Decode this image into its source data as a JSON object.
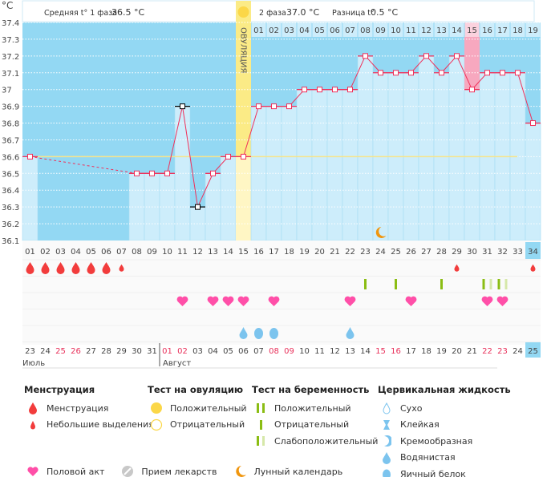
{
  "header": {
    "unit": "°C",
    "phase1_label": "Средняя t° 1 фаза",
    "phase1_value": "36.5 °C",
    "phase2_label": "2 фаза",
    "phase2_value": "37.0 °C",
    "diff_label": "Разница t°",
    "diff_value": "0.5 °C",
    "ovulation_label": "ОВУЛЯЦИЯ"
  },
  "chart_data": {
    "type": "line",
    "ylabel": "°C",
    "ylim": [
      36.1,
      37.4
    ],
    "yticks": [
      "36.1",
      "36.2",
      "36.3",
      "36.4",
      "36.5",
      "36.6",
      "36.7",
      "36.8",
      "36.9",
      "37",
      "37.1",
      "37.2",
      "37.3",
      "37.4"
    ],
    "cycle_days": [
      "01",
      "02",
      "03",
      "04",
      "05",
      "06",
      "07",
      "08",
      "09",
      "10",
      "11",
      "12",
      "13",
      "14",
      "15",
      "16",
      "17",
      "18",
      "19",
      "20",
      "21",
      "22",
      "23",
      "24",
      "25",
      "26",
      "27",
      "28",
      "29",
      "30",
      "31",
      "32",
      "33",
      "34"
    ],
    "temperatures": [
      36.6,
      null,
      null,
      null,
      null,
      null,
      null,
      36.5,
      36.5,
      36.5,
      36.9,
      36.3,
      36.5,
      36.6,
      36.6,
      36.9,
      36.9,
      36.9,
      37.0,
      37.0,
      37.0,
      37.0,
      37.2,
      37.1,
      37.1,
      37.1,
      37.2,
      37.1,
      37.2,
      37.0,
      37.1,
      37.1,
      37.1,
      36.8
    ],
    "excluded_days": [
      11,
      12
    ],
    "coverline": 36.6,
    "ovulation_day": 15,
    "post_ovulation_days": [
      "01",
      "02",
      "03",
      "04",
      "05",
      "06",
      "07",
      "08",
      "09",
      "10",
      "11",
      "12",
      "13",
      "14",
      "15",
      "16",
      "17",
      "18",
      "19"
    ],
    "highlighted_post_ovulation_day": 15,
    "current_day": 34,
    "dates": [
      "23",
      "24",
      "25",
      "26",
      "27",
      "28",
      "29",
      "30",
      "31",
      "01",
      "02",
      "03",
      "04",
      "05",
      "06",
      "07",
      "08",
      "09",
      "10",
      "11",
      "12",
      "13",
      "14",
      "15",
      "16",
      "17",
      "18",
      "19",
      "20",
      "21",
      "22",
      "23",
      "24",
      "25"
    ],
    "weekend_date_indexes": [
      3,
      4,
      10,
      11,
      17,
      18,
      24,
      25,
      31,
      32
    ],
    "months": [
      "Июль",
      "Август"
    ],
    "menstruation": {
      "1": "heavy",
      "2": "heavy",
      "3": "heavy",
      "4": "heavy",
      "5": "heavy",
      "6": "heavy",
      "7": "light",
      "29": "light",
      "34": "light"
    },
    "pregnancy_tests": {
      "23": "negative",
      "25": "negative",
      "28": "negative",
      "31": "weak",
      "32": "weak"
    },
    "intercourse_days": [
      11,
      13,
      14,
      15,
      17,
      22,
      26,
      31,
      32
    ],
    "cervical_fluid": {
      "15": "watery",
      "16": "eggwhite",
      "17": "eggwhite",
      "22": "watery"
    },
    "lunar_day": 24
  },
  "colors": {
    "bg_dark": "#93d8f3",
    "bg_light": "#cdedfb",
    "line": "#f0305a",
    "coverline": "#f7e48a",
    "ovulation": "#fbeb86",
    "highlight": "#f7a8bf",
    "weekend": "#e8305a",
    "menstruation": "#f23c3c",
    "test": "#8bbd14",
    "test_light": "#d6e8a9",
    "heart": "#ff4fa8",
    "fluid": "#7cc4ee",
    "moon": "#f0960e"
  },
  "legend": {
    "menstruation": {
      "title": "Менструация",
      "items": [
        "Менструация",
        "Небольшие выделения"
      ]
    },
    "ovulation_test": {
      "title": "Тест на овуляцию",
      "items": [
        "Положительный",
        "Отрицательный"
      ]
    },
    "pregnancy_test": {
      "title": "Тест на беременность",
      "items": [
        "Положительный",
        "Отрицательный",
        "Слабоположительный"
      ]
    },
    "cervical": {
      "title": "Цервикальная жидкость",
      "items": [
        "Сухо",
        "Клейкая",
        "Кремообразная",
        "Водянистая",
        "Яичный белок"
      ]
    },
    "other": [
      "Половой акт",
      "Прием лекарств",
      "Лунный календарь"
    ]
  }
}
